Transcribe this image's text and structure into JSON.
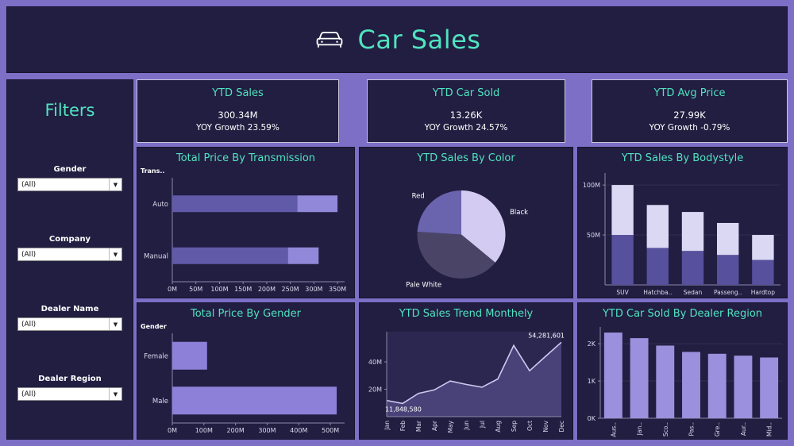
{
  "header": {
    "title": "Car Sales",
    "icon": "car-icon"
  },
  "filters": {
    "title": "Filters",
    "items": [
      {
        "label": "Gender",
        "value": "(All)"
      },
      {
        "label": "Company",
        "value": "(All)"
      },
      {
        "label": "Dealer Name",
        "value": "(All)"
      },
      {
        "label": "Dealer Region",
        "value": "(All)"
      }
    ]
  },
  "kpis": [
    {
      "title": "YTD Sales",
      "value": "300.34M",
      "growth": "YOY Growth 23.59%"
    },
    {
      "title": "YTD Car Sold",
      "value": "13.26K",
      "growth": "YOY Growth 24.57%"
    },
    {
      "title": "YTD Avg Price",
      "value": "27.99K",
      "growth": "YOY Growth -0.79%"
    }
  ],
  "colors": {
    "frame": "#7d6ec6",
    "panel": "#211e41",
    "accent": "#50e3c0",
    "text": "#ffffff",
    "axis_text": "#dcdaee",
    "axis_line": "#8d88ab",
    "grid_line": "rgba(255,255,255,0.08)"
  },
  "chart_data": [
    {
      "id": "transmission",
      "type": "bar",
      "orientation": "horizontal",
      "stacked": true,
      "title": "Total Price By Transmission",
      "corner_label": "Trans..",
      "categories": [
        "Auto",
        "Manual"
      ],
      "series": [
        {
          "name": "segment-1",
          "color": "#615aa8",
          "values": [
            265,
            245
          ]
        },
        {
          "name": "segment-2",
          "color": "#9288d9",
          "values": [
            85,
            65
          ]
        }
      ],
      "xlim": [
        0,
        365
      ],
      "x_ticks": [
        {
          "label": "0M",
          "value": 0
        },
        {
          "label": "50M",
          "value": 50
        },
        {
          "label": "100M",
          "value": 100
        },
        {
          "label": "150M",
          "value": 150
        },
        {
          "label": "200M",
          "value": 200
        },
        {
          "label": "250M",
          "value": 250
        },
        {
          "label": "300M",
          "value": 300
        },
        {
          "label": "350M",
          "value": 350
        }
      ]
    },
    {
      "id": "color",
      "type": "pie",
      "title": "YTD Sales By Color",
      "slices": [
        {
          "label": "Black",
          "value": 36,
          "color": "#d3cbf2"
        },
        {
          "label": "Pale White",
          "value": 40,
          "color": "#4a4566"
        },
        {
          "label": "Red",
          "value": 24,
          "color": "#6a63ae"
        }
      ],
      "start_angle_deg": 0
    },
    {
      "id": "bodystyle",
      "type": "bar",
      "orientation": "vertical",
      "stacked": true,
      "title": "YTD Sales By Bodystyle",
      "categories": [
        "SUV",
        "Hatchba..",
        "Sedan",
        "Passeng..",
        "Hardtop"
      ],
      "series": [
        {
          "name": "segment-1",
          "color": "#57509d",
          "values": [
            50,
            37,
            34,
            30,
            25
          ]
        },
        {
          "name": "segment-2",
          "color": "#dbd8f4",
          "values": [
            50,
            43,
            39,
            32,
            25
          ]
        }
      ],
      "ylim": [
        0,
        112
      ],
      "y_ticks": [
        {
          "label": "50M",
          "value": 50
        },
        {
          "label": "100M",
          "value": 100
        }
      ],
      "rotate_x_labels": false
    },
    {
      "id": "gender",
      "type": "bar",
      "orientation": "horizontal",
      "stacked": false,
      "title": "Total Price By Gender",
      "corner_label": "Gender",
      "categories": [
        "Female",
        "Male"
      ],
      "series": [
        {
          "name": "total",
          "color": "#8d80d8",
          "values": [
            110,
            520
          ]
        }
      ],
      "xlim": [
        0,
        545
      ],
      "x_ticks": [
        {
          "label": "0M",
          "value": 0
        },
        {
          "label": "100M",
          "value": 100
        },
        {
          "label": "200M",
          "value": 200
        },
        {
          "label": "300M",
          "value": 300
        },
        {
          "label": "400M",
          "value": 400
        },
        {
          "label": "500M",
          "value": 500
        }
      ]
    },
    {
      "id": "trend",
      "type": "area",
      "title": "YTD Sales Trend Monthely",
      "x": [
        "Jan",
        "Feb",
        "Mar",
        "Apr",
        "May",
        "Jun",
        "Jul",
        "Aug",
        "Sep",
        "Oct",
        "Nov",
        "Dec"
      ],
      "values": [
        11.8,
        9.6,
        17,
        19.5,
        26,
        23.5,
        21.5,
        27.5,
        52,
        33.5,
        44,
        54.3
      ],
      "ylim": [
        0,
        62
      ],
      "y_ticks": [
        {
          "label": "20M",
          "value": 20
        },
        {
          "label": "40M",
          "value": 40
        }
      ],
      "line_color": "#cfc9f0",
      "area_fill": "rgba(141,128,216,0.30)",
      "plot_bg": "rgba(141,128,216,0.10)",
      "annotations": [
        {
          "index": 0,
          "text": "11,848,580",
          "position": "below"
        },
        {
          "index": 11,
          "text": "54,281,601",
          "position": "above"
        }
      ]
    },
    {
      "id": "region",
      "type": "bar",
      "orientation": "vertical",
      "stacked": false,
      "title": "YTD Car Sold By Dealer Region",
      "categories": [
        "Aus..",
        "Jan..",
        "Sco..",
        "Pas..",
        "Gre..",
        "Aur..",
        "Mid.."
      ],
      "series": [
        {
          "name": "total",
          "color": "#9b90de",
          "values": [
            2.3,
            2.15,
            1.95,
            1.78,
            1.73,
            1.68,
            1.63
          ]
        }
      ],
      "ylim": [
        0,
        2.45
      ],
      "y_ticks": [
        {
          "label": "0K",
          "value": 0
        },
        {
          "label": "1K",
          "value": 1
        },
        {
          "label": "2K",
          "value": 2
        }
      ],
      "rotate_x_labels": true
    }
  ]
}
